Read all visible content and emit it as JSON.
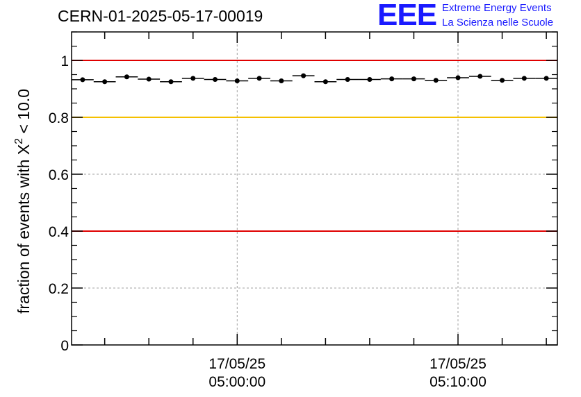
{
  "header": {
    "title": "CERN-01-2025-05-17-00019",
    "logo_text": "EEE",
    "logo_line1": "Extreme Energy Events",
    "logo_line2": "La Scienza nelle Scuole"
  },
  "colors": {
    "red_line": "#e00000",
    "yellow_line": "#f5c000",
    "logo": "#1a1aff",
    "points": "#000000",
    "grid": "#a0a0a0"
  },
  "chart_data": {
    "type": "scatter",
    "title": "CERN-01-2025-05-17-00019",
    "xlabel": "",
    "ylabel": "fraction of events with χ² < 10.0",
    "ylabel_main": "fraction of events with X",
    "ylabel_sup": "2",
    "ylabel_tail": " < 10.0",
    "ylim": [
      0,
      1.1
    ],
    "y_ticks": [
      0,
      0.2,
      0.4,
      0.6,
      0.8,
      1
    ],
    "y_tick_labels": [
      "0",
      "0.2",
      "0.4",
      "0.6",
      "0.8",
      "1"
    ],
    "x_time_ticks": [
      {
        "date": "17/05/25",
        "time": "05:00:00",
        "minutes": 0
      },
      {
        "date": "17/05/25",
        "time": "05:10:00",
        "minutes": 10
      }
    ],
    "xlim_minutes": [
      -7.5,
      14.5
    ],
    "bin_width_minutes": 1,
    "grid": true,
    "reference_lines": [
      {
        "value": 1.0,
        "color": "red"
      },
      {
        "value": 0.8,
        "color": "yellow"
      },
      {
        "value": 0.4,
        "color": "red"
      }
    ],
    "series": [
      {
        "name": "fraction",
        "x_minutes": [
          -7,
          -6,
          -5,
          -4,
          -3,
          -2,
          -1,
          0,
          1,
          2,
          3,
          4,
          5,
          6,
          7,
          8,
          9,
          10,
          11,
          12,
          13,
          14
        ],
        "values": [
          0.932,
          0.925,
          0.942,
          0.934,
          0.925,
          0.937,
          0.933,
          0.928,
          0.937,
          0.928,
          0.946,
          0.925,
          0.933,
          0.933,
          0.935,
          0.935,
          0.93,
          0.939,
          0.944,
          0.93,
          0.937,
          0.937
        ]
      }
    ]
  }
}
